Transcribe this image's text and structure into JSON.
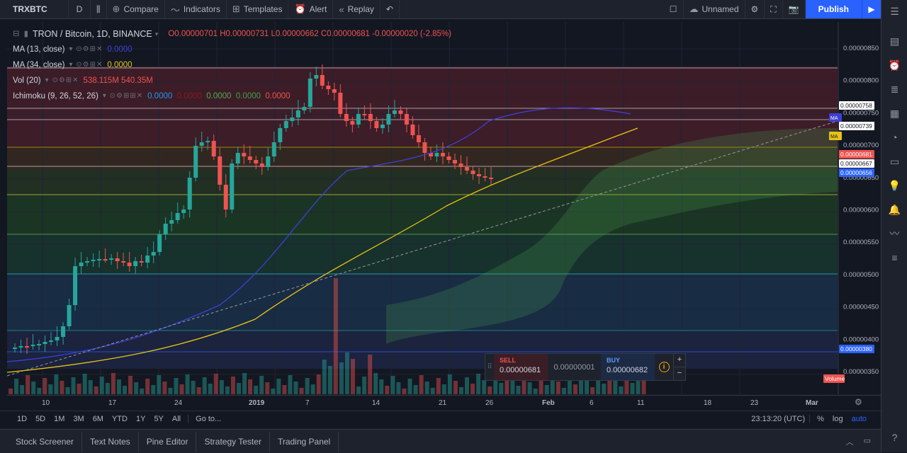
{
  "toolbar": {
    "symbol": "TRXBTC",
    "resolution": "D",
    "compare": "Compare",
    "indicators": "Indicators",
    "templates": "Templates",
    "alert": "Alert",
    "replay": "Replay",
    "layout_name": "Unnamed",
    "publish": "Publish"
  },
  "legend": {
    "title": "TRON / Bitcoin, 1D, BINANCE",
    "o": "O0.00000701",
    "h": "H0.00000731",
    "l": "L0.00000662",
    "c": "C0.00000681",
    "change": "-0.00000020 (-2.85%)",
    "ma13_label": "MA (13, close)",
    "ma13_value": "0.0000",
    "ma34_label": "MA (34, close)",
    "ma34_value": "0.0000",
    "vol_label": "Vol (20)",
    "vol_v1": "538.115M",
    "vol_v2": "540.35M",
    "ichi_label": "Ichimoku (9, 26, 52, 26)",
    "ichi_v1": "0.0000",
    "ichi_v2": "0.0000",
    "ichi_v3": "0.0000",
    "ichi_v4": "0.0000",
    "ichi_v5": "0.0000"
  },
  "price_axis": {
    "ticks": [
      "0.00000850",
      "0.00000800",
      "0.00000750",
      "0.00000700",
      "0.00000650",
      "0.00000600",
      "0.00000550",
      "0.00000500",
      "0.00000450",
      "0.00000400",
      "0.00000350"
    ],
    "labels": [
      {
        "text": "0.00000758",
        "bg": "#ffffff",
        "fg": "#131722"
      },
      {
        "text": "MA",
        "bg": "#3f3fd6",
        "fg": "#ffffff"
      },
      {
        "text": "0.00000739",
        "bg": "#ffffff",
        "fg": "#131722"
      },
      {
        "text": "MA",
        "bg": "#e7c315",
        "fg": "#131722"
      },
      {
        "text": "0.00000681",
        "bg": "#ef5350",
        "fg": "#ffffff"
      },
      {
        "text": "0.00000667",
        "bg": "#ffffff",
        "fg": "#131722"
      },
      {
        "text": "0.00000656",
        "bg": "#2962ff",
        "fg": "#ffffff"
      },
      {
        "text": "0.00000380",
        "bg": "#2962ff",
        "fg": "#ffffff"
      },
      {
        "text": "Volume",
        "bg": "#ef5350",
        "fg": "#ffffff"
      }
    ]
  },
  "time_axis": [
    "10",
    "17",
    "24",
    "2019",
    "7",
    "14",
    "21",
    "26",
    "Feb",
    "6",
    "11",
    "18",
    "23",
    "Mar"
  ],
  "range_bar": {
    "ranges": [
      "1D",
      "5D",
      "1M",
      "3M",
      "6M",
      "YTD",
      "1Y",
      "5Y",
      "All"
    ],
    "goto": "Go to...",
    "clock": "23:13:20 (UTC)",
    "percent": "%",
    "log": "log",
    "auto": "auto"
  },
  "trade": {
    "sell_label": "SELL",
    "sell_price": "0.00000681",
    "spread": "0.00000001",
    "buy_label": "BUY",
    "buy_price": "0.00000682"
  },
  "bottom_tabs": [
    "Stock Screener",
    "Text Notes",
    "Pine Editor",
    "Strategy Tester",
    "Trading Panel"
  ],
  "colors": {
    "up": "#26a69a",
    "down": "#ef5350",
    "accent": "#2962ff",
    "ma13": "#3f3fd6",
    "ma34": "#e7c315"
  }
}
